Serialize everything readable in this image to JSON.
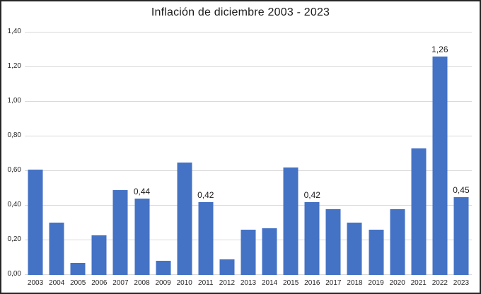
{
  "window": {
    "title": "Inflación de diciembre 2003 - 2023"
  },
  "chart_data": {
    "type": "bar",
    "title": "Inflación de diciembre 2003 - 2023",
    "categories": [
      "2003",
      "2004",
      "2005",
      "2006",
      "2007",
      "2008",
      "2009",
      "2010",
      "2011",
      "2012",
      "2013",
      "2014",
      "2015",
      "2016",
      "2017",
      "2018",
      "2019",
      "2020",
      "2021",
      "2022",
      "2023"
    ],
    "values": [
      0.61,
      0.3,
      0.07,
      0.23,
      0.49,
      0.44,
      0.08,
      0.65,
      0.42,
      0.09,
      0.26,
      0.27,
      0.62,
      0.42,
      0.38,
      0.3,
      0.26,
      0.38,
      0.73,
      1.26,
      0.45
    ],
    "bar_labels": [
      null,
      null,
      null,
      null,
      null,
      "0,44",
      null,
      null,
      "0,42",
      null,
      null,
      null,
      null,
      "0,42",
      null,
      null,
      null,
      null,
      null,
      "1,26",
      "0,45"
    ],
    "y_ticks": [
      "0,00",
      "0,20",
      "0,40",
      "0,60",
      "0,80",
      "1,00",
      "1,20",
      "1,40"
    ],
    "ylim": [
      0,
      1.4
    ],
    "xlabel": "",
    "ylabel": "",
    "grid": true,
    "legend": false,
    "decimal_separator": ",",
    "colors": {
      "bar": "#4472C4",
      "gridline": "#d9d9d9",
      "title_text": "#1a1a1a",
      "axis_text": "#262626",
      "border": "#262626",
      "background": "#ffffff"
    }
  }
}
